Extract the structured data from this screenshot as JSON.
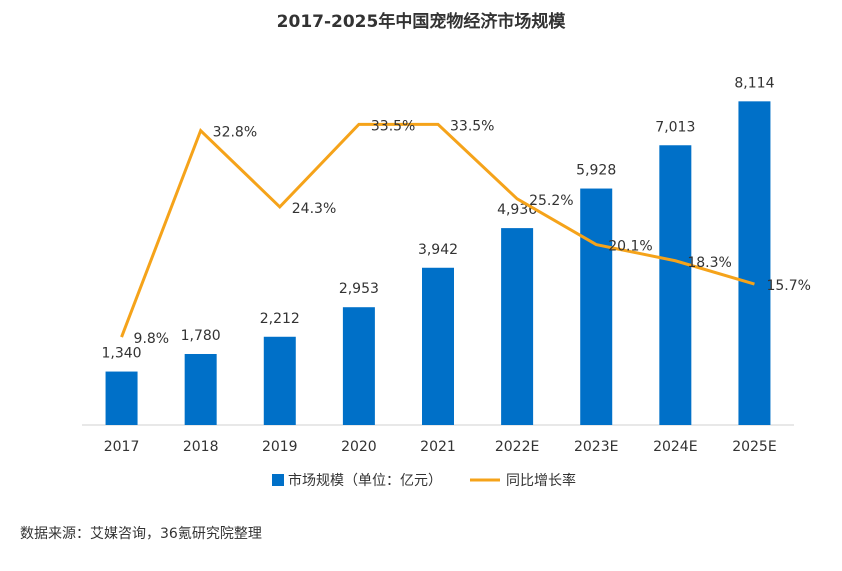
{
  "chart_data": {
    "type": "bar-line",
    "title": "2017-2025年中国宠物经济市场规模",
    "categories": [
      "2017",
      "2018",
      "2019",
      "2020",
      "2021",
      "2022E",
      "2023E",
      "2024E",
      "2025E"
    ],
    "series": [
      {
        "name": "市场规模（单位：亿元）",
        "type": "bar",
        "color": "#0070c8",
        "values": [
          1340,
          1780,
          2212,
          2953,
          3942,
          4936,
          5928,
          7013,
          8114
        ],
        "value_labels": [
          "1,340",
          "1,780",
          "2,212",
          "2,953",
          "3,942",
          "4,936",
          "5,928",
          "7,013",
          "8,114"
        ]
      },
      {
        "name": "同比增长率",
        "type": "line",
        "axis": "y2",
        "color": "#f5a31a",
        "values": [
          9.8,
          32.8,
          24.3,
          33.5,
          33.5,
          25.2,
          20.1,
          18.3,
          15.7
        ],
        "value_labels": [
          "9.8%",
          "32.8%",
          "24.3%",
          "33.5%",
          "33.5%",
          "25.2%",
          "20.1%",
          "18.3%",
          "15.7%"
        ]
      }
    ],
    "ylim": [
      0,
      9000
    ],
    "y2lim": [
      0,
      40
    ],
    "note": "数据来源：艾媒咨询，36氪研究院整理"
  }
}
